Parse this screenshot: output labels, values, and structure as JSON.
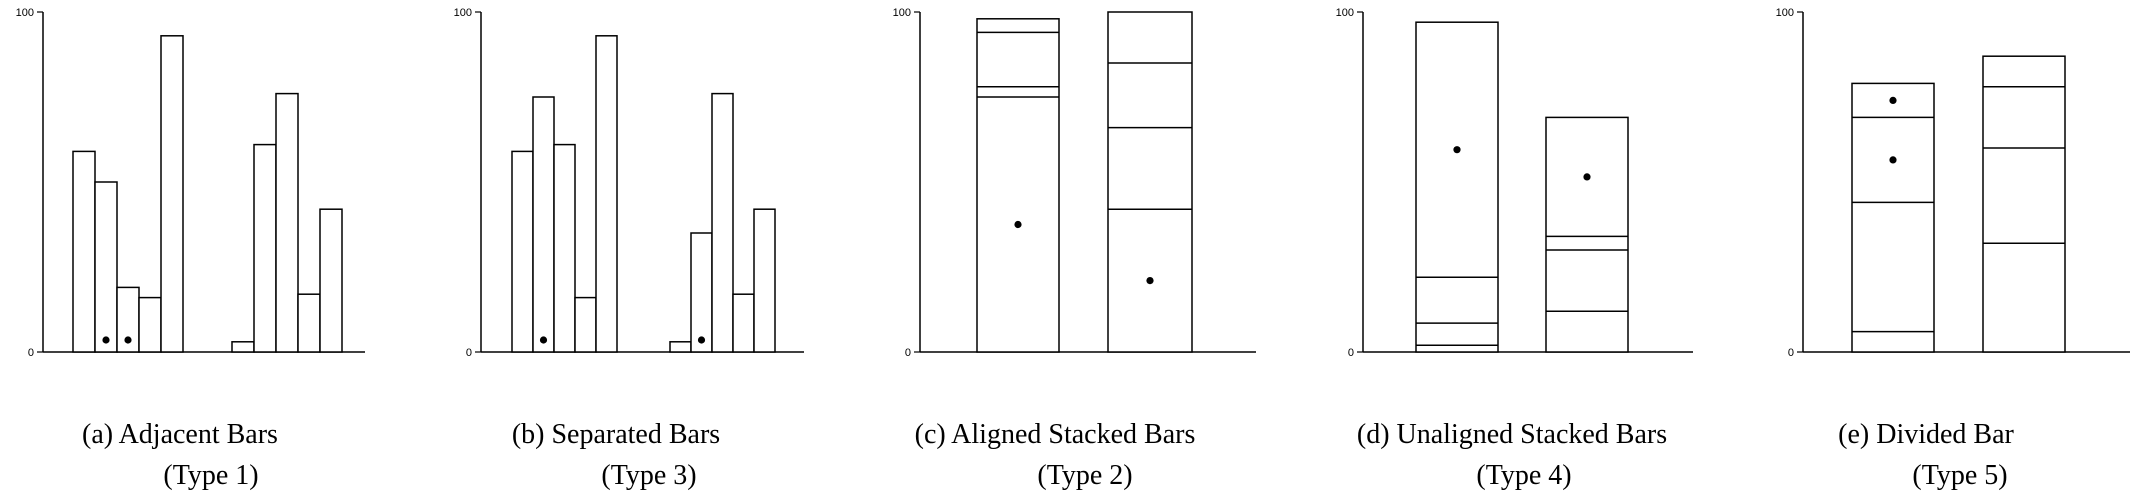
{
  "colors": {
    "stroke": "#000000",
    "fill": "#ffffff"
  },
  "chart_data": [
    {
      "type": "bar",
      "variant": "adjacent",
      "caption": [
        "(a) Adjacent Bars",
        "(Type 1)"
      ],
      "ylim": [
        0,
        100
      ],
      "yticks": [
        "0",
        "100"
      ],
      "groups": [
        {
          "values": [
            59,
            50,
            19,
            16,
            93
          ],
          "marked": [
            1,
            2
          ]
        },
        {
          "values": [
            3,
            61,
            76,
            17,
            42
          ],
          "marked": []
        }
      ]
    },
    {
      "type": "bar",
      "variant": "separated",
      "caption": [
        "(b) Separated Bars",
        "(Type 3)"
      ],
      "ylim": [
        0,
        100
      ],
      "yticks": [
        "0",
        "100"
      ],
      "groups": [
        {
          "values": [
            59,
            75,
            61,
            16,
            93
          ],
          "marked": [
            1
          ]
        },
        {
          "values": [
            3,
            35,
            76,
            17,
            42
          ],
          "marked": [
            1
          ]
        }
      ]
    },
    {
      "type": "stacked-bar",
      "variant": "aligned",
      "caption": [
        "(c) Aligned Stacked Bars",
        "(Type 2)"
      ],
      "ylim": [
        0,
        100
      ],
      "yticks": [
        "0",
        "100"
      ],
      "bars": [
        {
          "segments": [
            75,
            3,
            16,
            4
          ],
          "marked": 0
        },
        {
          "segments": [
            42,
            24,
            19,
            15
          ],
          "marked": 0
        }
      ]
    },
    {
      "type": "stacked-bar",
      "variant": "unaligned",
      "caption": [
        "(d) Unaligned Stacked Bars",
        "(Type 4)"
      ],
      "ylim": [
        0,
        100
      ],
      "yticks": [
        "0",
        "100"
      ],
      "bars": [
        {
          "segments": [
            2,
            6.5,
            13.5,
            75
          ],
          "marked": 3
        },
        {
          "segments": [
            12,
            18,
            4,
            35
          ],
          "marked": 3
        }
      ]
    },
    {
      "type": "divided-bar",
      "caption": [
        "(e) Divided Bar",
        "(Type 5)"
      ],
      "ylim": [
        0,
        100
      ],
      "yticks": [
        "0",
        "100"
      ],
      "bars": [
        {
          "segments": [
            6,
            38,
            25,
            10
          ],
          "marked": [
            2,
            3
          ]
        },
        {
          "segments": [
            32,
            28,
            18,
            9
          ],
          "marked": []
        }
      ]
    }
  ]
}
